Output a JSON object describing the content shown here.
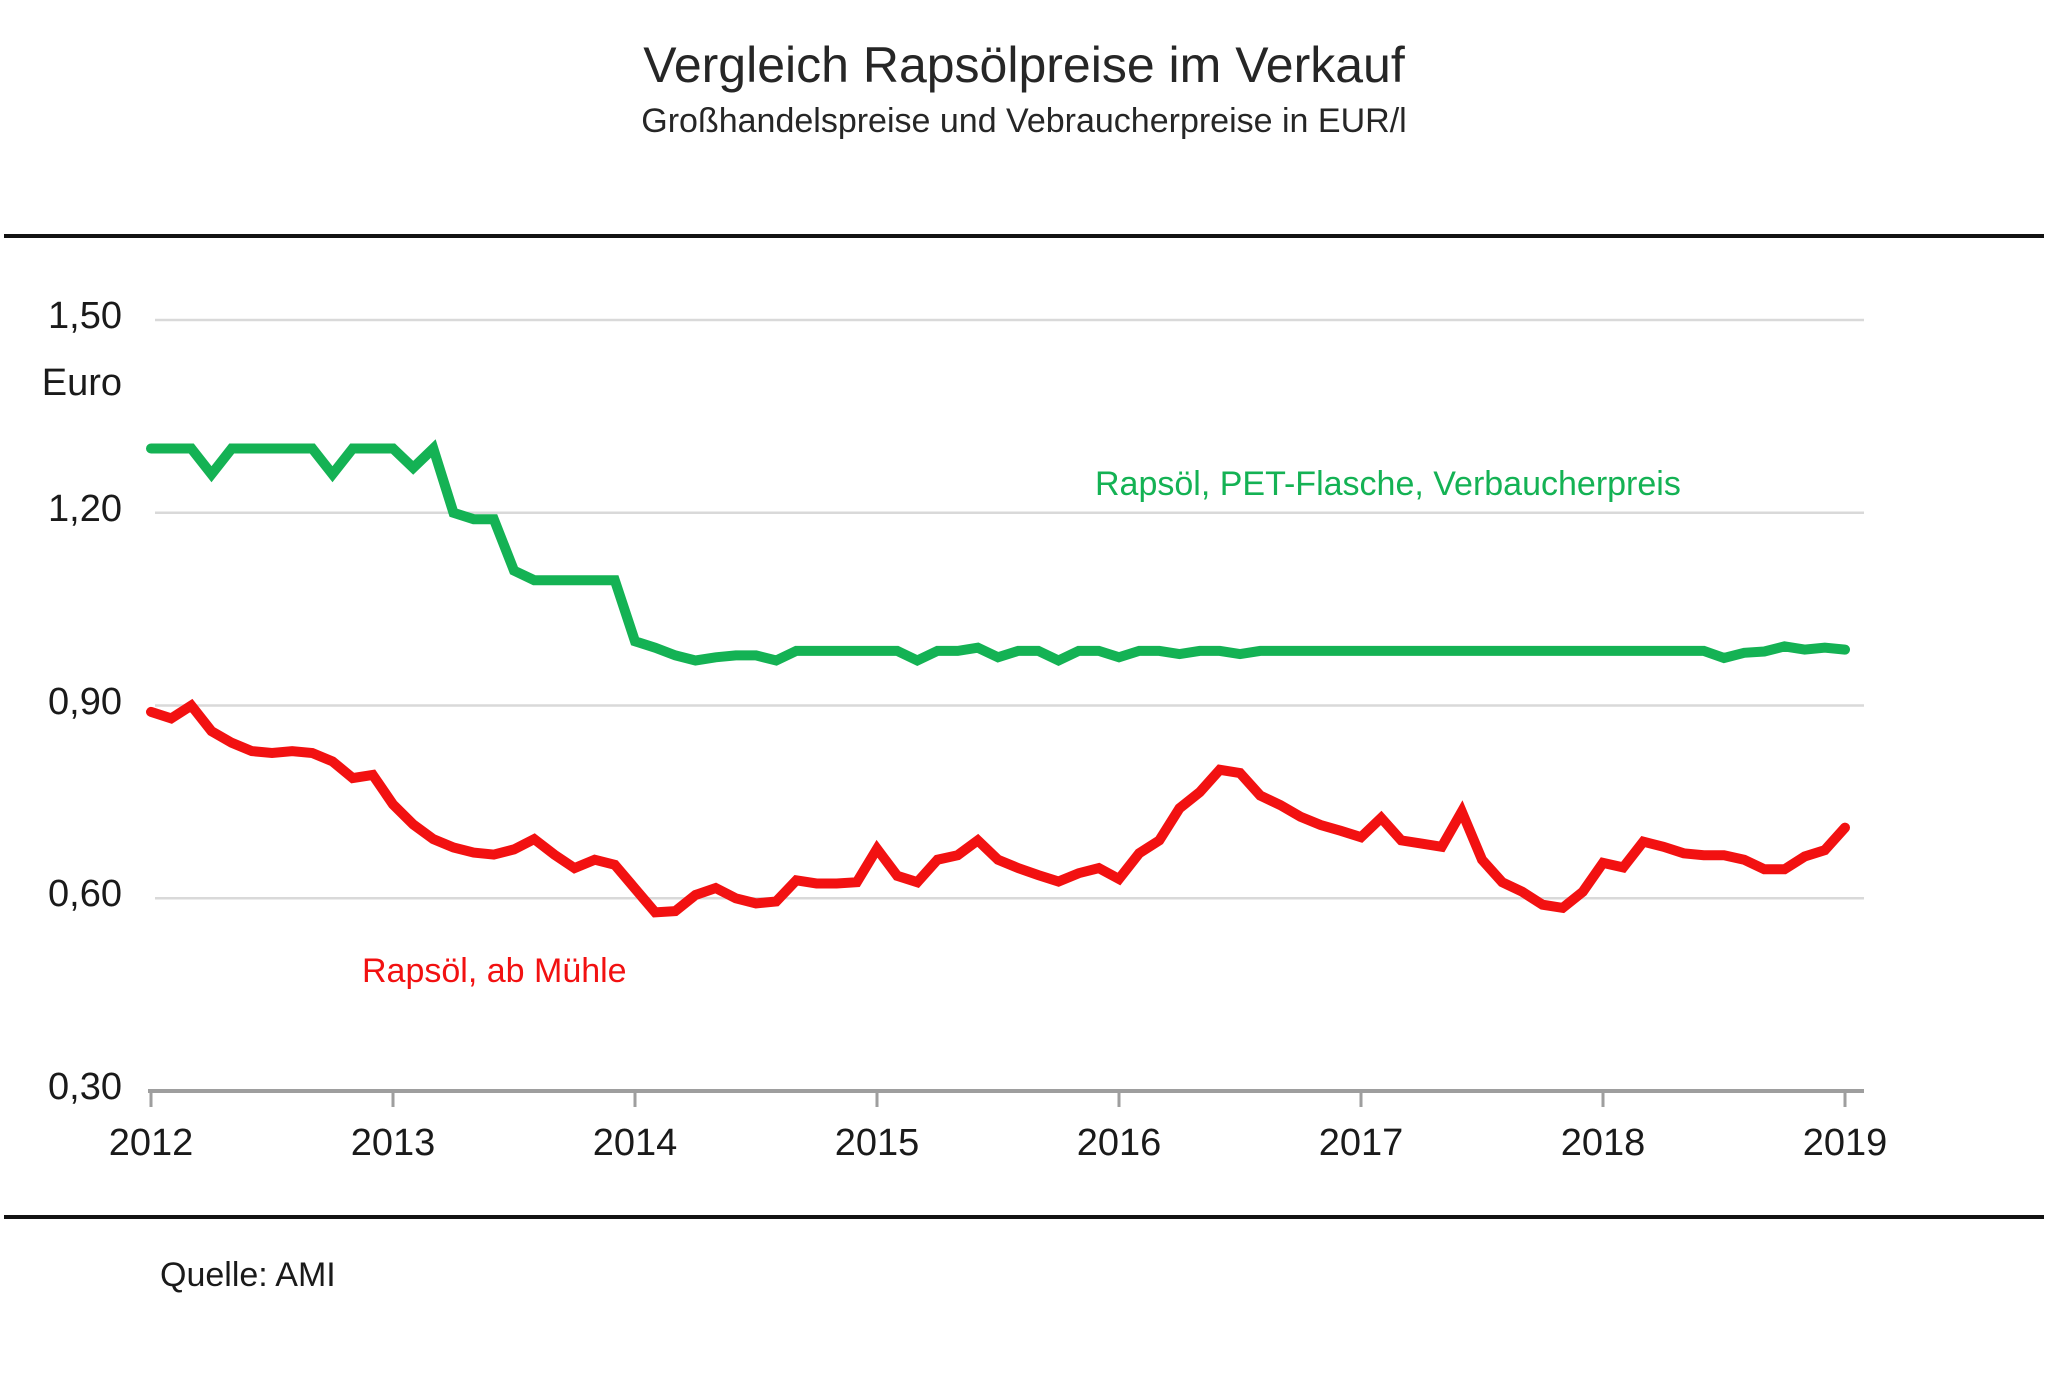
{
  "chart_data": {
    "type": "line",
    "title": "Vergleich Rapsölpreise im Verkauf",
    "subtitle": "Großhandelspreise und Vebraucherpreise in EUR/l",
    "source": "Quelle: AMI",
    "y_axis_unit": "Euro",
    "ylim": [
      0.3,
      1.5
    ],
    "grid": true,
    "legend_position": "inline-labels",
    "x_tick_labels": [
      "2012",
      "2013",
      "2014",
      "2015",
      "2016",
      "2017",
      "2018",
      "2019"
    ],
    "y_tick_labels": [
      "1,50",
      "1,20",
      "0,90",
      "0,60",
      "0,30"
    ],
    "y_gridline_values": [
      1.5,
      1.2,
      0.9,
      0.6
    ],
    "x_monthly_from": "2012-01",
    "x_monthly_to": "2019-01",
    "series": [
      {
        "name": "Rapsöl, PET-Flasche, Verbaucherpreis",
        "color": "#14b254",
        "values": [
          1.3,
          1.3,
          1.3,
          1.26,
          1.3,
          1.3,
          1.3,
          1.3,
          1.3,
          1.26,
          1.3,
          1.3,
          1.3,
          1.27,
          1.3,
          1.2,
          1.19,
          1.19,
          1.11,
          1.095,
          1.095,
          1.095,
          1.095,
          1.095,
          1.0,
          0.99,
          0.978,
          0.97,
          0.975,
          0.978,
          0.978,
          0.97,
          0.985,
          0.985,
          0.985,
          0.985,
          0.985,
          0.985,
          0.97,
          0.985,
          0.985,
          0.99,
          0.975,
          0.985,
          0.985,
          0.97,
          0.985,
          0.985,
          0.975,
          0.985,
          0.985,
          0.98,
          0.985,
          0.985,
          0.98,
          0.985,
          0.985,
          0.985,
          0.985,
          0.985,
          0.985,
          0.985,
          0.985,
          0.985,
          0.985,
          0.985,
          0.985,
          0.985,
          0.985,
          0.985,
          0.985,
          0.985,
          0.985,
          0.985,
          0.985,
          0.985,
          0.985,
          0.985,
          0.974,
          0.982,
          0.984,
          0.992,
          0.987,
          0.99,
          0.987
        ]
      },
      {
        "name": "Rapsöl, ab Mühle",
        "color": "#f21111",
        "values": [
          0.89,
          0.88,
          0.9,
          0.86,
          0.842,
          0.829,
          0.826,
          0.829,
          0.826,
          0.813,
          0.787,
          0.792,
          0.746,
          0.715,
          0.692,
          0.679,
          0.671,
          0.668,
          0.676,
          0.692,
          0.668,
          0.647,
          0.66,
          0.652,
          0.615,
          0.578,
          0.58,
          0.605,
          0.616,
          0.6,
          0.592,
          0.595,
          0.628,
          0.623,
          0.623,
          0.625,
          0.677,
          0.635,
          0.625,
          0.66,
          0.667,
          0.69,
          0.66,
          0.647,
          0.636,
          0.626,
          0.639,
          0.647,
          0.63,
          0.67,
          0.69,
          0.74,
          0.765,
          0.8,
          0.795,
          0.76,
          0.745,
          0.727,
          0.714,
          0.705,
          0.695,
          0.725,
          0.69,
          0.685,
          0.68,
          0.735,
          0.66,
          0.625,
          0.61,
          0.59,
          0.585,
          0.61,
          0.655,
          0.648,
          0.688,
          0.68,
          0.67,
          0.667,
          0.667,
          0.66,
          0.645,
          0.645,
          0.665,
          0.675,
          0.71
        ]
      }
    ]
  }
}
